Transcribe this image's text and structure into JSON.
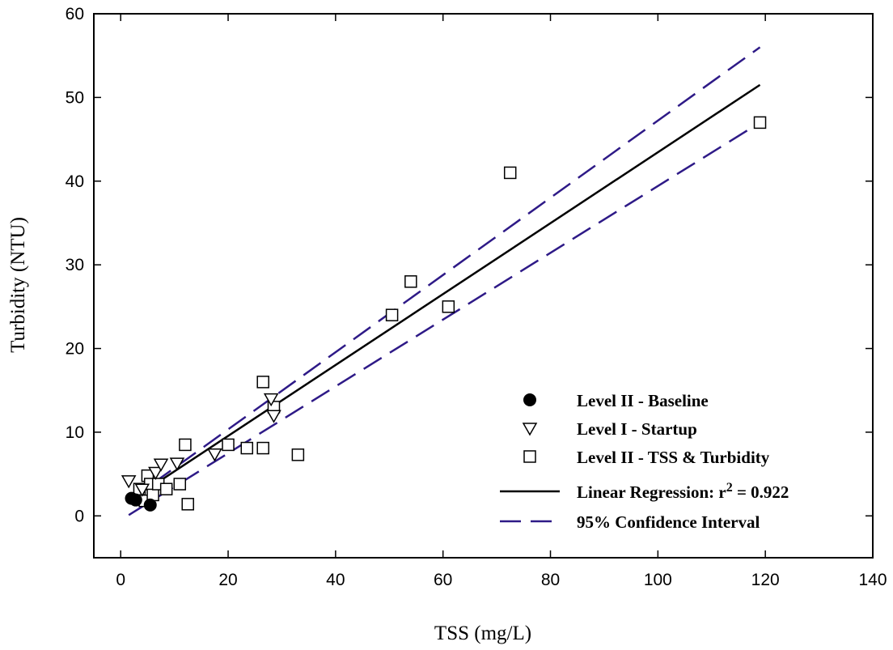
{
  "chart_data": {
    "type": "scatter",
    "xlabel": "TSS (mg/L)",
    "ylabel": "Turbidity (NTU)",
    "xlim": [
      -5,
      140
    ],
    "ylim": [
      -5,
      60
    ],
    "x_ticks": [
      0,
      20,
      40,
      60,
      80,
      100,
      120,
      140
    ],
    "y_ticks": [
      0,
      10,
      20,
      30,
      40,
      50,
      60
    ],
    "legend_position": "lower-right",
    "series": [
      {
        "name": "Level II - Baseline",
        "marker": "filled-circle",
        "points": [
          [
            2.0,
            2.1
          ],
          [
            2.8,
            1.9
          ],
          [
            5.5,
            1.3
          ]
        ]
      },
      {
        "name": "Level I - Startup",
        "marker": "open-triangle-down",
        "points": [
          [
            1.5,
            4.2
          ],
          [
            4.0,
            3.2
          ],
          [
            6.5,
            5.2
          ],
          [
            7.5,
            6.2
          ],
          [
            10.5,
            6.3
          ],
          [
            17.5,
            7.4
          ],
          [
            28.0,
            14.0
          ],
          [
            28.5,
            12.0
          ]
        ]
      },
      {
        "name": "Level II - TSS & Turbidity",
        "marker": "open-square",
        "points": [
          [
            3.5,
            3.2
          ],
          [
            4.5,
            1.8
          ],
          [
            5.0,
            4.8
          ],
          [
            5.5,
            3.8
          ],
          [
            6.0,
            2.5
          ],
          [
            7.0,
            3.8
          ],
          [
            8.5,
            3.2
          ],
          [
            11.0,
            3.8
          ],
          [
            12.0,
            8.5
          ],
          [
            12.5,
            1.4
          ],
          [
            20.0,
            8.5
          ],
          [
            23.5,
            8.1
          ],
          [
            26.5,
            16.0
          ],
          [
            26.5,
            8.1
          ],
          [
            28.5,
            13.0
          ],
          [
            33.0,
            7.3
          ],
          [
            50.5,
            24.0
          ],
          [
            54.0,
            28.0
          ],
          [
            61.0,
            25.0
          ],
          [
            72.5,
            41.0
          ],
          [
            119.0,
            47.0
          ]
        ]
      },
      {
        "name": "Linear Regression: r",
        "name_superscript": "2",
        "name_suffix": " = 0.922",
        "marker": "solid-line",
        "color": "#000000",
        "points": [
          [
            5.0,
            3.2
          ],
          [
            119.0,
            51.5
          ]
        ]
      },
      {
        "name": "95% Confidence Interval",
        "marker": "dashed-line",
        "color": "#2e1a87",
        "upper": [
          [
            1.5,
            1.8
          ],
          [
            119.0,
            56.0
          ]
        ],
        "lower": [
          [
            1.5,
            0.1
          ],
          [
            119.0,
            47.0
          ]
        ]
      }
    ]
  }
}
